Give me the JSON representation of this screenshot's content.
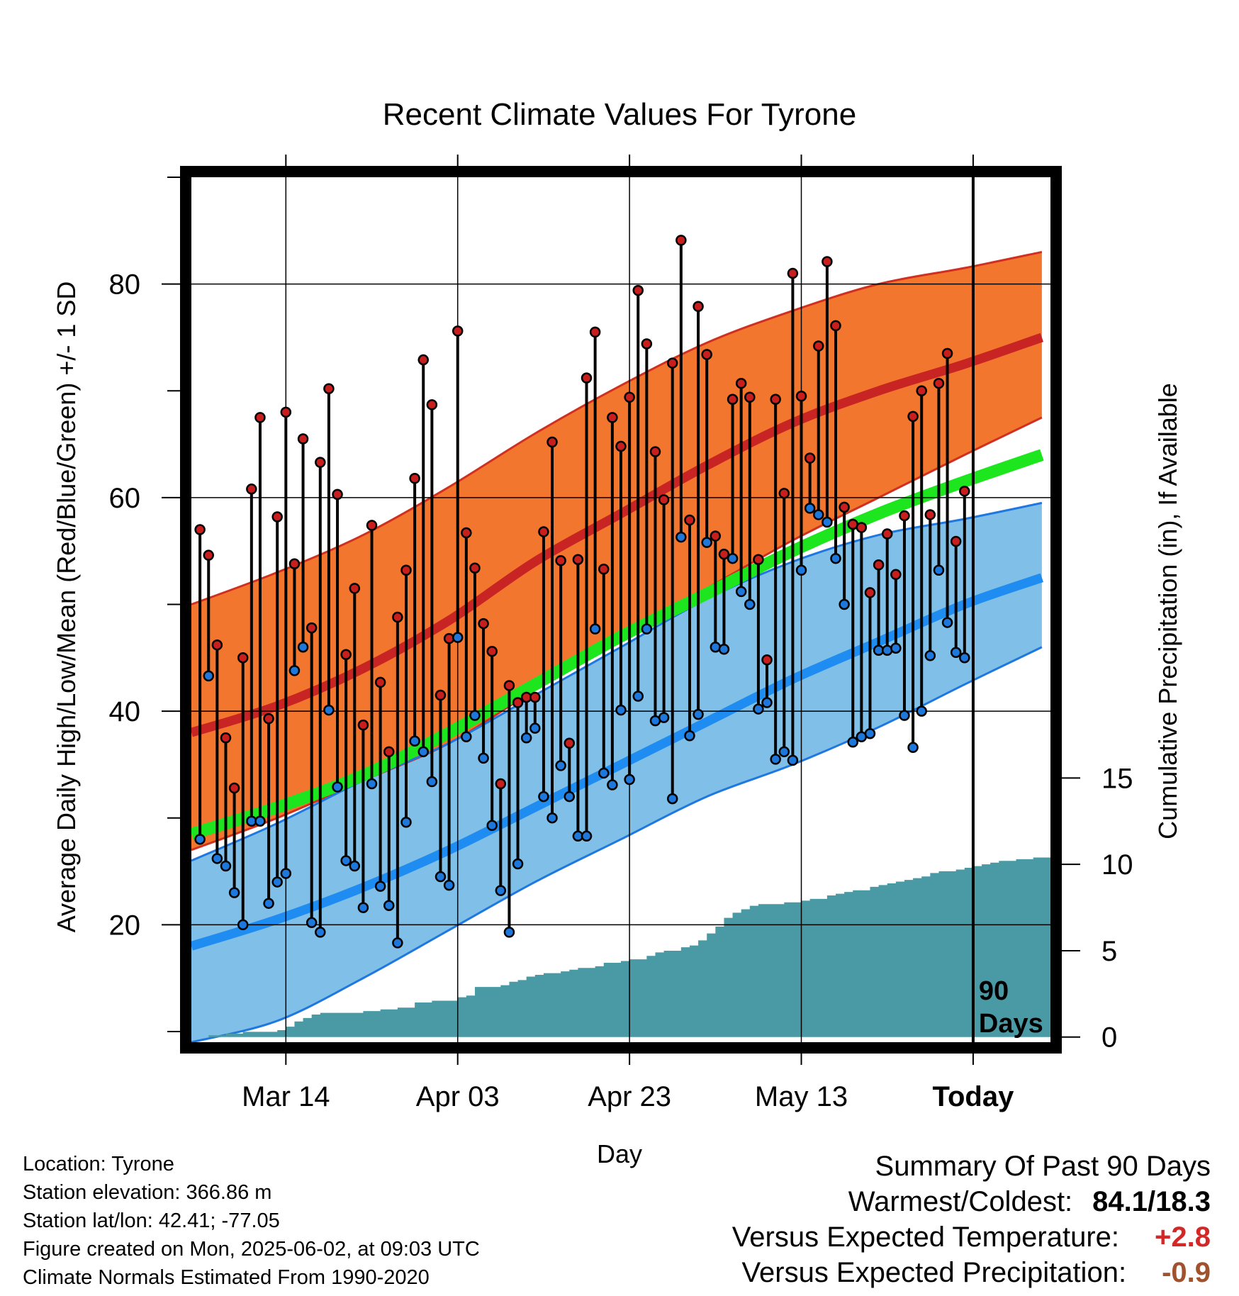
{
  "chart_data": {
    "type": "line",
    "title": "Recent Climate Values For Tyrone",
    "xlabel": "Day",
    "ylabel_left": "Average Daily High/Low/Mean (Red/Blue/Green) +/- 1 SD",
    "ylabel_right": "Cumulative Precipitation (in), If Available",
    "x_ticks": [
      {
        "day": 11,
        "label": "Mar 14"
      },
      {
        "day": 31,
        "label": "Apr 03"
      },
      {
        "day": 51,
        "label": "Apr 23"
      },
      {
        "day": 71,
        "label": "May 13"
      },
      {
        "day": 91,
        "label": "Today"
      }
    ],
    "xlim": [
      0,
      100
    ],
    "ylim_left": [
      9,
      90
    ],
    "y_ticks_left": [
      20,
      40,
      60,
      80
    ],
    "ylim_right": [
      -0.3,
      49.8
    ],
    "y_ticks_right": [
      0,
      5,
      10,
      15
    ],
    "today_marker": {
      "day": 91,
      "label_line1": "90",
      "label_line2": "Days"
    },
    "normals": {
      "days": [
        0,
        10,
        20,
        30,
        40,
        50,
        60,
        70,
        80,
        90,
        99
      ],
      "high_mean": [
        38,
        40.5,
        44,
        48.5,
        54,
        58.5,
        63,
        67,
        70,
        72.5,
        75
      ],
      "high_plus": [
        50,
        53,
        56.5,
        61,
        66,
        70.5,
        74.5,
        77.5,
        80,
        81.5,
        83
      ],
      "high_minus": [
        27,
        30,
        33.5,
        37,
        42,
        47,
        51.5,
        56,
        60,
        64,
        67.5
      ],
      "low_mean": [
        18,
        20.5,
        23.5,
        27,
        31,
        35,
        39,
        43,
        46.5,
        50,
        52.5
      ],
      "low_plus": [
        26,
        29.5,
        33.5,
        37,
        41.5,
        46,
        50.5,
        54,
        56.5,
        58,
        59.5
      ],
      "low_minus": [
        9,
        11,
        15,
        19.5,
        24,
        28,
        32,
        35,
        38.5,
        42.5,
        46
      ],
      "avg_mean": [
        28.5,
        31,
        34,
        38,
        42.5,
        47,
        51,
        55,
        58.5,
        61.5,
        64
      ]
    },
    "series": [
      {
        "name": "High",
        "color": "#c81e1e",
        "values": [
          57,
          54.6,
          46.2,
          37.5,
          32.8,
          45,
          60.8,
          67.5,
          39.3,
          58.2,
          68,
          53.8,
          65.5,
          47.8,
          63.3,
          70.2,
          60.3,
          45.3,
          51.5,
          38.7,
          57.4,
          42.7,
          36.2,
          48.8,
          53.2,
          61.8,
          72.9,
          68.7,
          41.5,
          46.8,
          75.6,
          56.7,
          53.4,
          48.2,
          45.6,
          33.2,
          42.4,
          40.8,
          41.3,
          41.3,
          56.8,
          65.2,
          54.1,
          37,
          54.2,
          71.2,
          75.5,
          53.3,
          67.5,
          64.8,
          69.4,
          79.4,
          74.4,
          64.3,
          59.8,
          72.6,
          84.1,
          57.9,
          77.9,
          73.4,
          56.4,
          54.7,
          69.2,
          70.7,
          69.4,
          54.2,
          44.8,
          69.2,
          60.4,
          81,
          69.5,
          63.7,
          74.2,
          82.1,
          76.1,
          59.1,
          57.5,
          57.2,
          51.1,
          53.7,
          56.6,
          52.8,
          58.3,
          67.6,
          70,
          58.4,
          70.7,
          73.5,
          55.9,
          60.6
        ]
      },
      {
        "name": "Low",
        "color": "#1e78dc",
        "values": [
          28,
          43.3,
          26.2,
          25.5,
          23,
          20,
          29.7,
          29.7,
          22,
          24,
          24.8,
          43.8,
          46,
          20.2,
          19.3,
          40.1,
          32.9,
          26,
          25.5,
          21.6,
          33.2,
          23.6,
          21.8,
          18.3,
          29.6,
          37.2,
          36.2,
          33.4,
          24.5,
          23.7,
          46.9,
          37.6,
          39.6,
          35.6,
          29.3,
          23.2,
          19.3,
          25.7,
          37.5,
          38.4,
          32,
          30,
          34.9,
          32,
          28.3,
          28.3,
          47.7,
          34.2,
          33.1,
          40.1,
          33.6,
          41.4,
          47.7,
          39.1,
          39.4,
          31.8,
          56.3,
          37.7,
          39.7,
          55.8,
          46,
          45.8,
          54.3,
          51.2,
          50,
          40.2,
          40.8,
          35.5,
          36.2,
          35.4,
          53.2,
          59,
          58.4,
          57.7,
          54.3,
          50,
          37.1,
          37.6,
          37.9,
          45.7,
          45.7,
          45.9,
          39.6,
          36.6,
          40,
          45.2,
          53.2,
          48.3,
          45.5,
          45
        ]
      },
      {
        "name": "Cumulative Precipitation",
        "color": "#4a9aa5",
        "days": [
          2,
          4,
          6,
          10,
          11,
          12,
          13,
          14,
          15,
          20,
          22,
          24,
          26,
          28,
          30,
          31,
          32,
          33,
          34,
          35,
          36,
          37,
          38,
          39,
          40,
          41,
          42,
          43,
          44,
          45,
          46,
          47,
          48,
          49,
          50,
          51,
          52,
          53,
          54,
          55,
          56,
          57,
          58,
          59,
          60,
          61,
          62,
          63,
          64,
          65,
          66,
          67,
          68,
          69,
          70,
          71,
          72,
          73,
          74,
          75,
          76,
          77,
          78,
          79,
          80,
          81,
          82,
          83,
          84,
          85,
          86,
          87,
          88,
          89,
          90,
          91,
          92,
          93,
          94,
          95,
          96,
          97,
          98,
          99
        ],
        "values": [
          0.1,
          0.2,
          0.3,
          0.4,
          0.6,
          0.9,
          1.1,
          1.3,
          1.4,
          1.5,
          1.6,
          1.7,
          2.0,
          2.1,
          2.1,
          2.3,
          2.4,
          2.9,
          2.9,
          2.9,
          3.0,
          3.2,
          3.3,
          3.5,
          3.6,
          3.7,
          3.7,
          3.8,
          3.9,
          4.0,
          4.0,
          4.1,
          4.3,
          4.3,
          4.4,
          4.5,
          4.5,
          4.7,
          4.9,
          5.0,
          5.0,
          5.2,
          5.3,
          5.6,
          6.0,
          6.4,
          6.9,
          7.2,
          7.4,
          7.6,
          7.7,
          7.7,
          7.7,
          7.8,
          7.8,
          7.9,
          8.0,
          8.0,
          8.2,
          8.3,
          8.4,
          8.5,
          8.5,
          8.7,
          8.8,
          8.9,
          9.0,
          9.1,
          9.2,
          9.3,
          9.5,
          9.6,
          9.6,
          9.7,
          9.8,
          9.9,
          10.0,
          10.1,
          10.2,
          10.2,
          10.3,
          10.3,
          10.4,
          10.4
        ]
      }
    ]
  },
  "footer_left": {
    "location": "Location: Tyrone",
    "elevation": "Station elevation: 366.86 m",
    "latlon": "Station lat/lon: 42.41; -77.05",
    "created": "Figure created on Mon, 2025-06-02, at 09:03 UTC",
    "normals": "Climate Normals Estimated From 1990-2020"
  },
  "summary": {
    "heading": "Summary Of Past 90 Days",
    "warmest_label": "Warmest/Coldest:",
    "warmest_value": "84.1/18.3",
    "temp_label": "Versus Expected Temperature:",
    "temp_value": "+2.8",
    "temp_color": "#d22828",
    "precip_label": "Versus Expected Precipitation:",
    "precip_value": "-0.9",
    "precip_color": "#a0522d"
  }
}
